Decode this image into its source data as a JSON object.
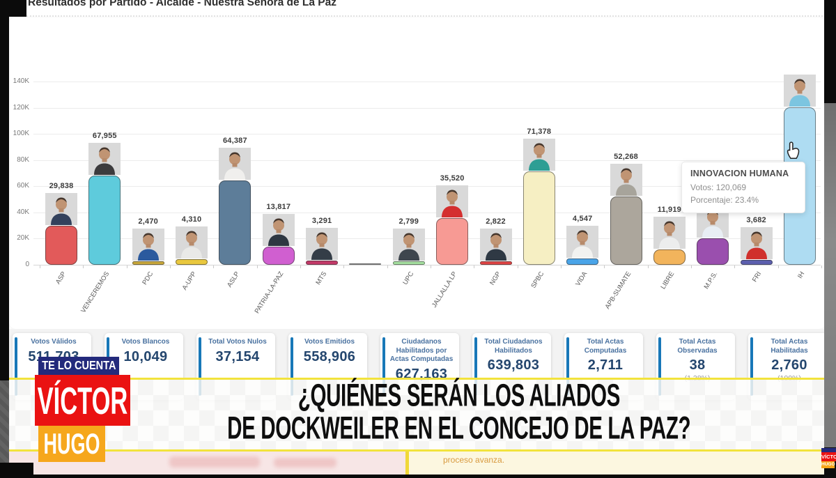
{
  "header": {
    "title": "Resultados por Partido - Alcalde - Nuestra Señora de La Paz"
  },
  "chart_data": {
    "type": "bar",
    "title": "Resultados por Partido - Alcalde - Nuestra Señora de La Paz",
    "ylabel": "",
    "ylim": [
      0,
      140000
    ],
    "ytick_labels": [
      "0",
      "20K",
      "40K",
      "60K",
      "80K",
      "100K",
      "120K",
      "140K"
    ],
    "grid": true,
    "legend": "none",
    "categories": [
      "ASP",
      "VENCEREMOS",
      "PDC",
      "A-UPP",
      "ASLP",
      "PATRIA-LA-PAZ",
      "MTS",
      "",
      "UPC",
      "JALLALLA LP",
      "NGP",
      "SPBC",
      "VIDA",
      "APB-SUMATE",
      "LIBRE",
      "M.P.S.",
      "FRI",
      "IH"
    ],
    "values": [
      29838,
      67955,
      2470,
      4310,
      64387,
      13817,
      3291,
      400,
      2799,
      35520,
      2822,
      71378,
      4547,
      52268,
      11919,
      20000,
      3682,
      120069
    ],
    "value_labels": [
      "29,838",
      "67,955",
      "2,470",
      "4,310",
      "64,387",
      "13,817",
      "3,291",
      "",
      "2,799",
      "35,520",
      "2,822",
      "71,378",
      "4,547",
      "52,268",
      "11,919",
      "",
      "3,682",
      ""
    ],
    "bar_colors": [
      "#e25a5a",
      "#5ecbdc",
      "#c9a83b",
      "#e9c83f",
      "#5d7d99",
      "#d05fd0",
      "#c23a68",
      "#c0c0c0",
      "#a5e0a0",
      "#f79a94",
      "#e04545",
      "#f6efc3",
      "#4aa4e8",
      "#aca69c",
      "#f2b45c",
      "#9a4fae",
      "#5c5fae",
      "#aedcf2"
    ],
    "has_photo": [
      true,
      true,
      true,
      true,
      true,
      true,
      true,
      false,
      true,
      true,
      true,
      true,
      true,
      true,
      true,
      true,
      true,
      true
    ],
    "photo_shirts": [
      "#33415c",
      "#3c3b3d",
      "#2b5a9e",
      "#e9e9e7",
      "#f0efed",
      "#2e3742",
      "#343d47",
      "",
      "#3e464e",
      "#d42f2f",
      "#2f3944",
      "#2e9e94",
      "#f2f2f0",
      "#a7a49b",
      "#eceded",
      "#e8eef4",
      "#d0302c",
      "#7cc5e0"
    ],
    "notes": "M.P.S. value label hidden behind tooltip (bar height estimated ~20K); IH value label not shown above bar, value given in tooltip",
    "tooltip": {
      "title": "INNOVACION HUMANA",
      "line1": "Votos: 120,069",
      "line2": "Porcentaje: 23.4%"
    }
  },
  "stat_cards": [
    {
      "title": "Votos Válidos",
      "value": "511,703",
      "sub": ""
    },
    {
      "title": "Votos Blancos",
      "value": "10,049",
      "sub": ""
    },
    {
      "title": "Total Votos Nulos",
      "value": "37,154",
      "sub": ""
    },
    {
      "title": "Votos Emitidos",
      "value": "558,906",
      "sub": ""
    },
    {
      "title": "Ciudadanos Habilitados por Actas Computadas",
      "value": "627,163",
      "sub": ""
    },
    {
      "title": "Total Ciudadanos Habilitados",
      "value": "639,803",
      "sub": ""
    },
    {
      "title": "Total Actas Computadas",
      "value": "2,711",
      "sub": ""
    },
    {
      "title": "Total Actas Observadas",
      "value": "38",
      "sub": "(1.38%)"
    },
    {
      "title": "Total Actas Habilitadas",
      "value": "2,760",
      "sub": "(100%)"
    }
  ],
  "lower_third": {
    "brand_top": "TE LO CUENTA",
    "brand_name_1": "VÍCTOR",
    "brand_name_2": "HUGO",
    "headline_line1": "¿QUIÉNES SERÁN LOS ALIADOS",
    "headline_line2": "DE DOCKWEILER EN EL CONCEJO DE LA PAZ?",
    "ticker_text": "proceso avanza."
  },
  "colors": {
    "card_accent_blue": "#1878b8",
    "card_value_navy": "#24466e",
    "band_yellow": "#f2e33c",
    "brand_navy": "#232a7c",
    "brand_red": "#ea1212",
    "brand_orange": "#f6a71c",
    "ticker_orange": "#d89a3f"
  }
}
